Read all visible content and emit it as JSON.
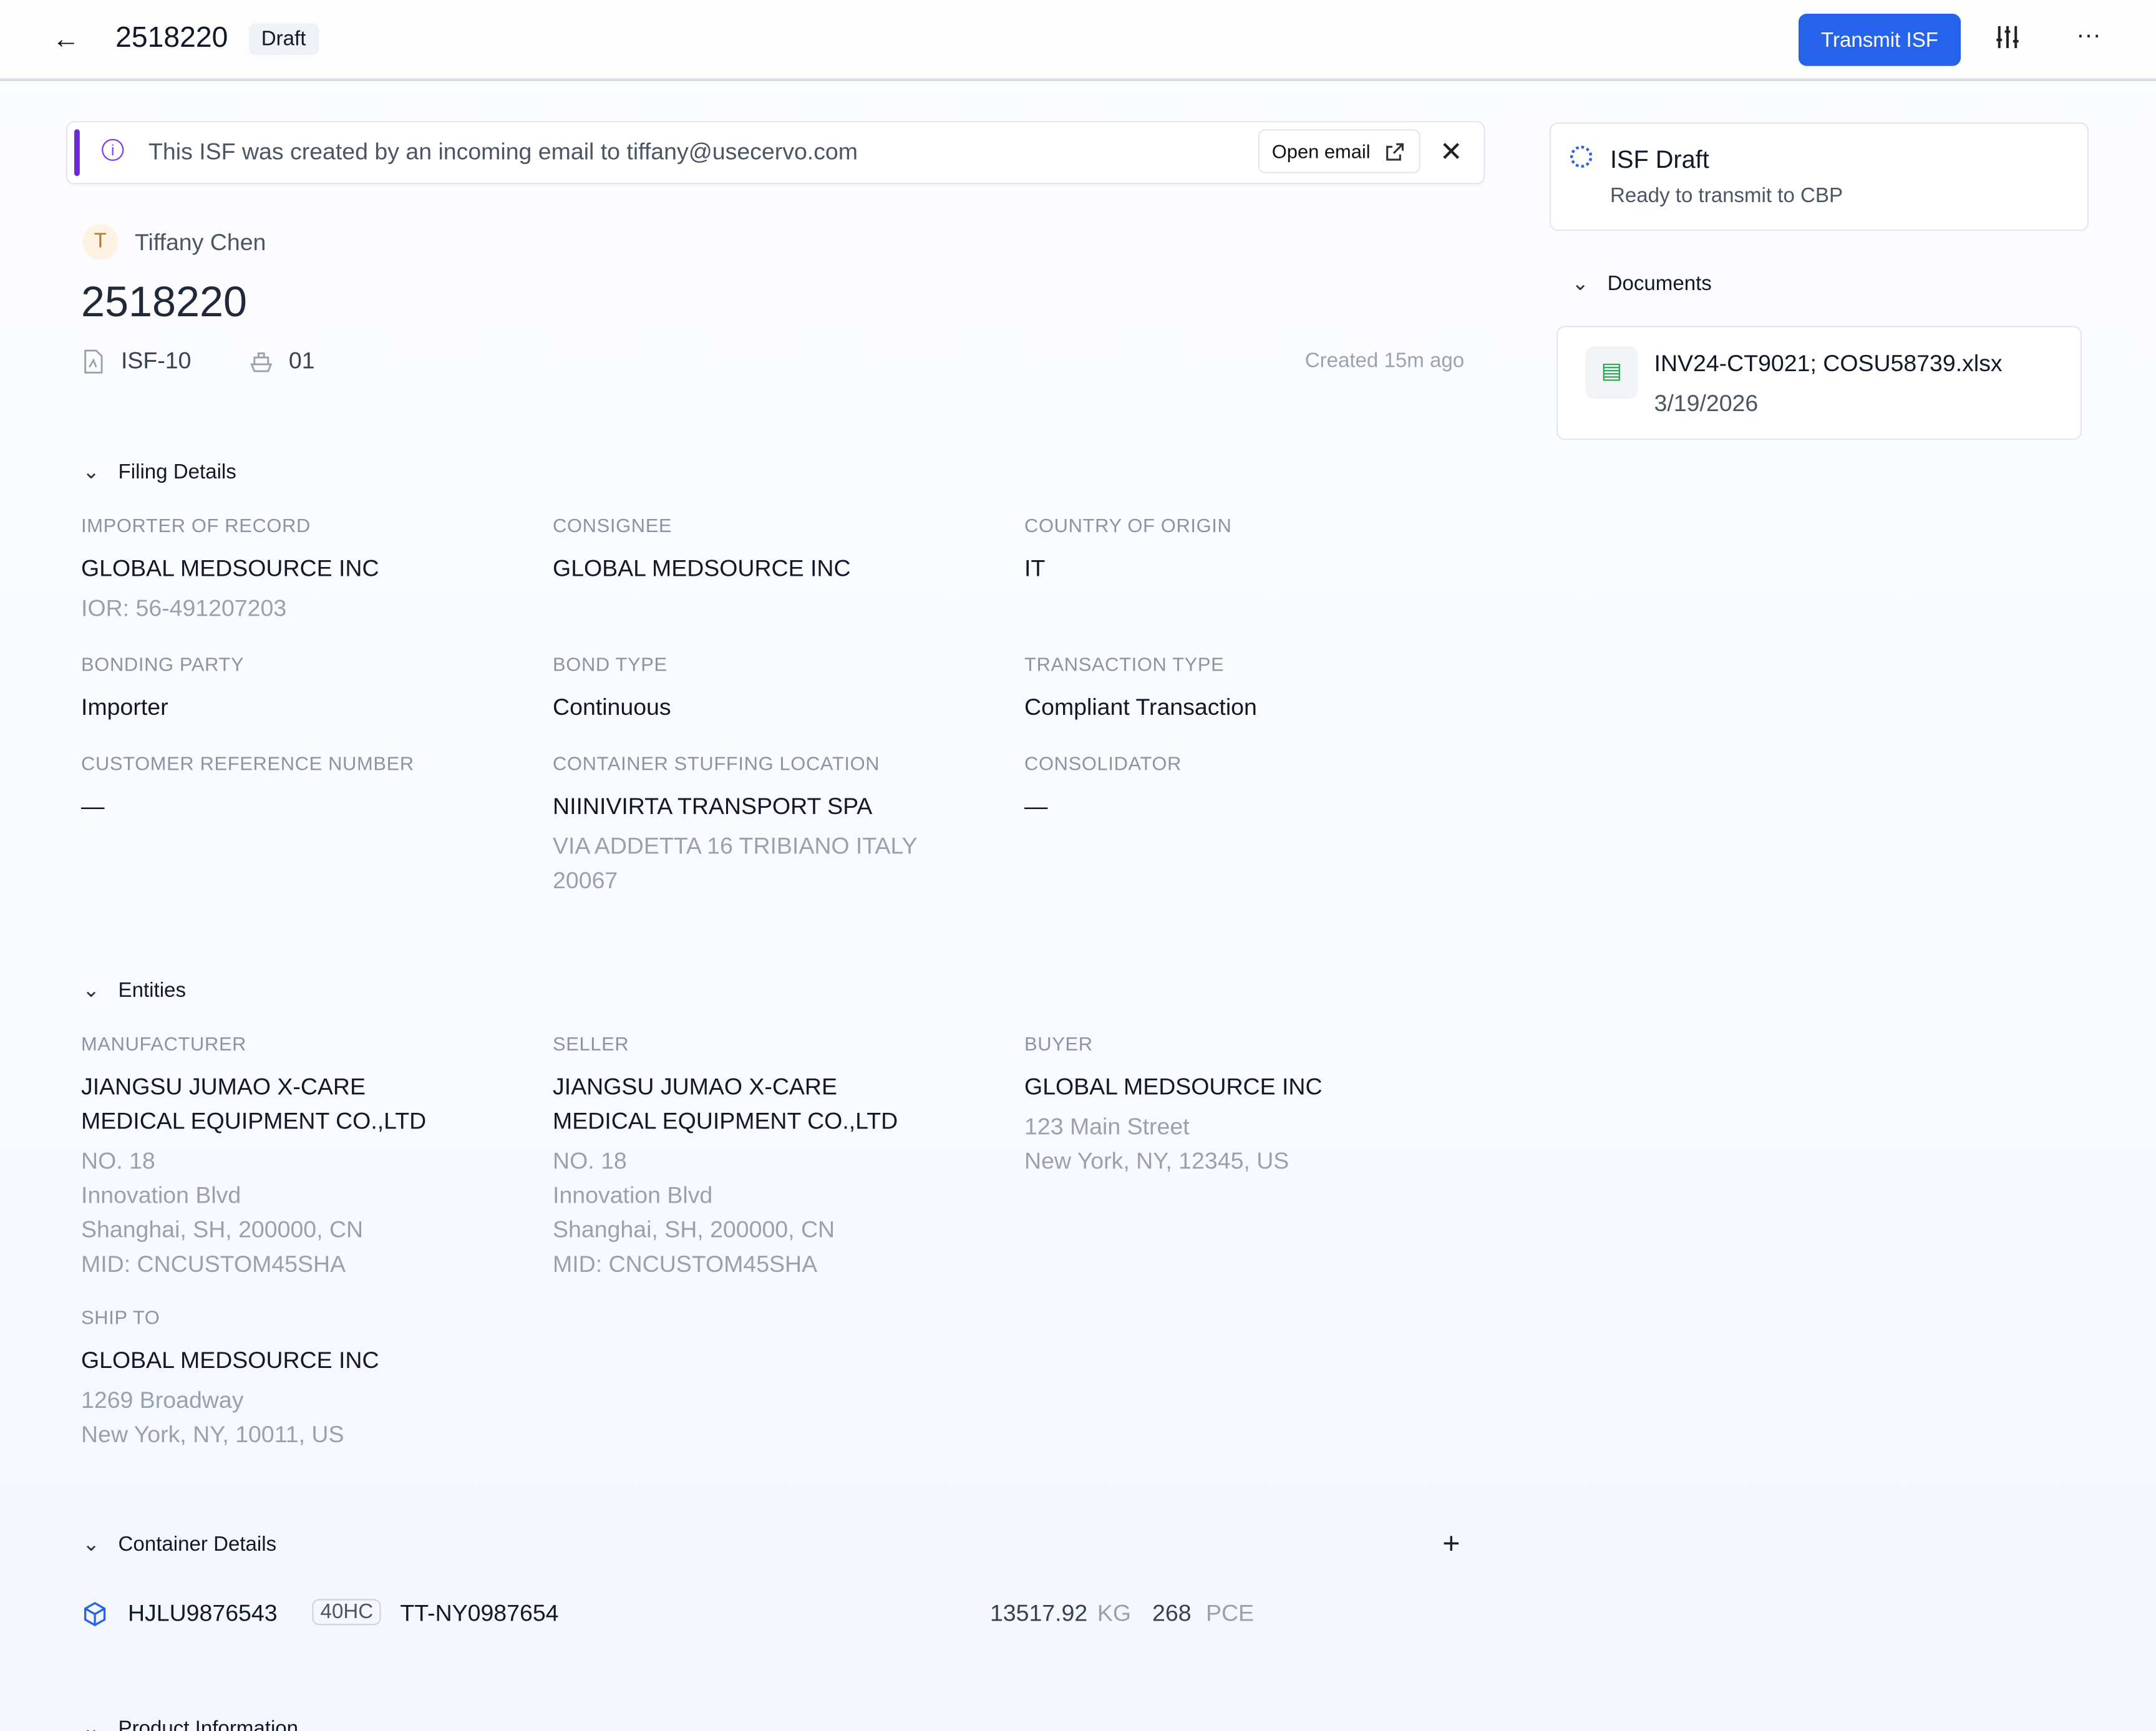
{
  "header": {
    "back_icon": "arrow-left-icon",
    "title": "2518220",
    "status": "Draft",
    "transmit_label": "Transmit ISF",
    "settings_icon": "sliders-icon",
    "more_icon": "more-horizontal-icon"
  },
  "banner": {
    "message": "This ISF was created by an incoming email to tiffany@usecervo.com",
    "open_email_label": "Open email",
    "accent": "#6d28d9"
  },
  "record": {
    "avatar_initial": "T",
    "author": "Tiffany Chen",
    "title": "2518220",
    "form_type": "ISF-10",
    "code": "01",
    "created": "Created 15m ago"
  },
  "filing": {
    "heading": "Filing Details",
    "fields": [
      {
        "label": "IMPORTER OF RECORD",
        "value": "GLOBAL MEDSOURCE INC",
        "sub": [
          "IOR: 56-491207203"
        ]
      },
      {
        "label": "CONSIGNEE",
        "value": "GLOBAL MEDSOURCE INC",
        "sub": []
      },
      {
        "label": "COUNTRY OF ORIGIN",
        "value": "IT",
        "sub": []
      },
      {
        "label": "BONDING PARTY",
        "value": "Importer",
        "sub": []
      },
      {
        "label": "BOND TYPE",
        "value": "Continuous",
        "sub": []
      },
      {
        "label": "TRANSACTION TYPE",
        "value": "Compliant Transaction",
        "sub": []
      },
      {
        "label": "CUSTOMER REFERENCE NUMBER",
        "value": "—",
        "sub": []
      },
      {
        "label": "CONTAINER STUFFING LOCATION",
        "value": "NIINIVIRTA TRANSPORT SPA",
        "sub": [
          "VIA ADDETTA 16 TRIBIANO ITALY",
          "20067"
        ]
      },
      {
        "label": "CONSOLIDATOR",
        "value": "—",
        "sub": []
      }
    ]
  },
  "entities": {
    "heading": "Entities",
    "fields": [
      {
        "label": "MANUFACTURER",
        "value": [
          "JIANGSU JUMAO X-CARE",
          "MEDICAL EQUIPMENT CO.,LTD"
        ],
        "sub": [
          "NO. 18",
          "Innovation Blvd",
          "Shanghai, SH, 200000, CN",
          "MID: CNCUSTOM45SHA"
        ]
      },
      {
        "label": "SELLER",
        "value": [
          "JIANGSU JUMAO X-CARE",
          "MEDICAL EQUIPMENT CO.,LTD"
        ],
        "sub": [
          "NO. 18",
          "Innovation Blvd",
          "Shanghai, SH, 200000, CN",
          "MID: CNCUSTOM45SHA"
        ]
      },
      {
        "label": "BUYER",
        "value": [
          "GLOBAL MEDSOURCE INC"
        ],
        "sub": [
          "123 Main Street",
          "New York, NY, 12345, US"
        ]
      },
      {
        "label": "SHIP TO",
        "value": [
          "GLOBAL MEDSOURCE INC"
        ],
        "sub": [
          "1269 Broadway",
          "New York, NY, 10011, US"
        ]
      }
    ]
  },
  "containers": {
    "heading": "Container Details",
    "items": [
      {
        "number": "HJLU9876543",
        "type": "40HC",
        "seal": "TT-NY0987654",
        "weight": "13517.92",
        "weight_unit": "KG",
        "quantity": "268",
        "quantity_unit": "PCE"
      }
    ]
  },
  "product": {
    "heading": "Product Information"
  },
  "status_card": {
    "title": "ISF Draft",
    "subtitle": "Ready to transmit to CBP"
  },
  "documents": {
    "heading": "Documents",
    "items": [
      {
        "name": "INV24-CT9021; COSU58739.xlsx",
        "date": "3/19/2026"
      }
    ]
  }
}
